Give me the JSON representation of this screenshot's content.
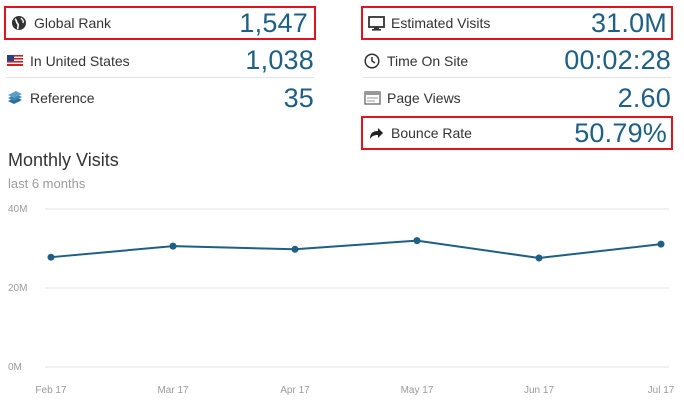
{
  "stats_left": [
    {
      "label": "Global Rank",
      "value": "1,547",
      "icon": "globe-icon",
      "highlighted": true
    },
    {
      "label": "In United States",
      "value": "1,038",
      "icon": "us-flag-icon",
      "highlighted": false
    },
    {
      "label": "Reference",
      "value": "35",
      "icon": "books-icon",
      "highlighted": false
    }
  ],
  "stats_right": [
    {
      "label": "Estimated Visits",
      "value": "31.0M",
      "icon": "monitor-icon",
      "highlighted": true
    },
    {
      "label": "Time On Site",
      "value": "00:02:28",
      "icon": "clock-icon",
      "highlighted": false
    },
    {
      "label": "Page Views",
      "value": "2.60",
      "icon": "page-icon",
      "highlighted": false
    },
    {
      "label": "Bounce Rate",
      "value": "50.79%",
      "icon": "share-arrow-icon",
      "highlighted": true
    }
  ],
  "colors": {
    "accent": "#1e5f84",
    "highlight": "#e0141e",
    "grid": "#e3e3e3"
  },
  "chart_data": {
    "type": "line",
    "title": "Monthly Visits",
    "subtitle": "last 6 months",
    "categories": [
      "Feb 17",
      "Mar 17",
      "Apr 17",
      "May 17",
      "Jun 17",
      "Jul 17"
    ],
    "series": [
      {
        "values": [
          27.8,
          30.6,
          29.8,
          32.0,
          27.6,
          31.1
        ]
      }
    ],
    "ylim": [
      0,
      40
    ],
    "yticks": [
      {
        "value": 40,
        "label": "40M"
      },
      {
        "value": 20,
        "label": "20M"
      },
      {
        "value": 0,
        "label": "0M"
      }
    ],
    "grid": true,
    "legend": "none"
  }
}
